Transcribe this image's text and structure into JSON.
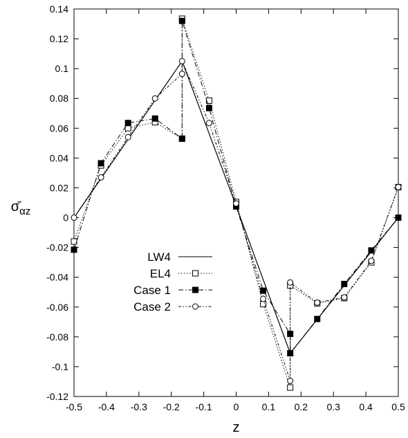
{
  "chart_data": {
    "type": "line",
    "xlabel": "z",
    "ylabel": "σ̄",
    "ylabel_sub": "αz",
    "xlim": [
      -0.5,
      0.5
    ],
    "ylim": [
      -0.12,
      0.14
    ],
    "x_ticks": [
      "-0.5",
      "-0.4",
      "-0.3",
      "-0.2",
      "-0.1",
      "0",
      "0.1",
      "0.2",
      "0.3",
      "0.4",
      "0.5"
    ],
    "y_ticks": [
      "-0.12",
      "-0.1",
      "-0.08",
      "-0.06",
      "-0.04",
      "-0.02",
      "0",
      "0.02",
      "0.04",
      "0.06",
      "0.08",
      "0.1",
      "0.12",
      "0.14"
    ],
    "grid": false,
    "legend_position": "center-left",
    "series": [
      {
        "name": "LW4",
        "style": "solid",
        "marker": "none",
        "x": [
          -0.5,
          -0.1667,
          0.0,
          0.1667,
          0.5
        ],
        "y": [
          0.0,
          0.105,
          0.0078,
          -0.091,
          0.0
        ]
      },
      {
        "name": "EL4",
        "style": "dotted",
        "marker": "open-square",
        "x": [
          -0.5,
          -0.4167,
          -0.3333,
          -0.25,
          -0.1667,
          -0.1667,
          -0.0833,
          0.0,
          0.0833,
          0.1667,
          0.1667,
          0.25,
          0.3333,
          0.4167,
          0.5
        ],
        "y": [
          -0.016,
          0.035,
          0.06,
          0.064,
          0.053,
          0.1335,
          0.0785,
          0.0105,
          -0.058,
          -0.114,
          -0.0455,
          -0.0575,
          -0.054,
          -0.03,
          0.0205
        ]
      },
      {
        "name": "Case 1",
        "style": "dash-dot",
        "marker": "filled-square",
        "x": [
          -0.5,
          -0.4167,
          -0.3333,
          -0.25,
          -0.1667,
          -0.1667,
          -0.0833,
          0.0,
          0.0833,
          0.1667,
          0.1667,
          0.25,
          0.3333,
          0.4167,
          0.5
        ],
        "y": [
          -0.0215,
          0.0365,
          0.0635,
          0.0665,
          0.053,
          0.132,
          0.0735,
          0.0075,
          -0.049,
          -0.078,
          -0.091,
          -0.068,
          -0.0445,
          -0.022,
          0.0
        ]
      },
      {
        "name": "Case 2",
        "style": "dash-dot-dot",
        "marker": "open-circle",
        "x": [
          -0.5,
          -0.4167,
          -0.3333,
          -0.25,
          -0.1667,
          -0.1667,
          -0.0833,
          0.0,
          0.0833,
          0.1667,
          0.1667,
          0.25,
          0.3333,
          0.4167,
          0.5
        ],
        "y": [
          0.0,
          0.027,
          0.054,
          0.08,
          0.0965,
          0.105,
          0.0635,
          0.0095,
          -0.0545,
          -0.1095,
          -0.0435,
          -0.057,
          -0.0535,
          -0.029,
          0.0205
        ]
      }
    ]
  }
}
